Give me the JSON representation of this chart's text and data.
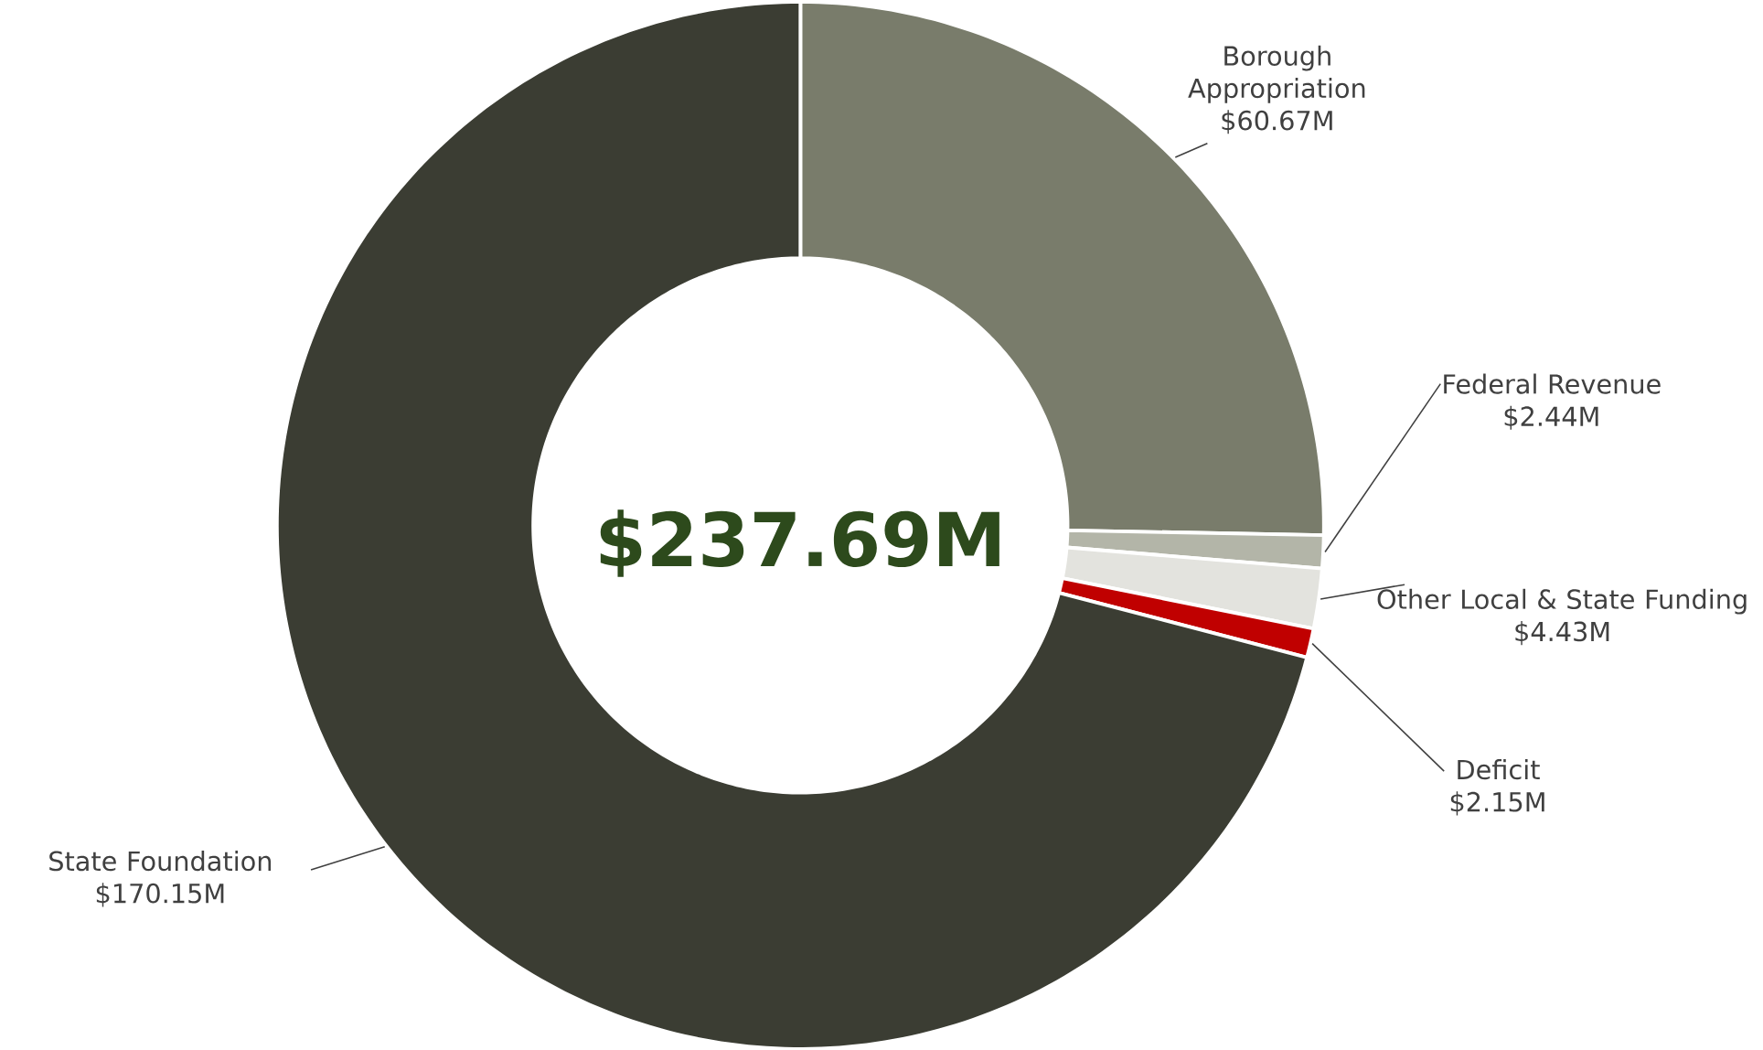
{
  "chart_data": {
    "type": "donut",
    "categories": [
      "Borough Appropriation",
      "Federal Revenue",
      "Other Local & State Funding",
      "Deficit",
      "State Foundation"
    ],
    "values": [
      60.67,
      2.44,
      4.43,
      2.15,
      170.15
    ],
    "value_labels": [
      "$60.67M",
      "$2.44M",
      "$4.43M",
      "$2.15M",
      "$170.15M"
    ],
    "colors": [
      "#797c6b",
      "#b3b5a8",
      "#e3e3de",
      "#c00000",
      "#3b3d33"
    ],
    "annotations": [
      "$237.69M"
    ]
  }
}
